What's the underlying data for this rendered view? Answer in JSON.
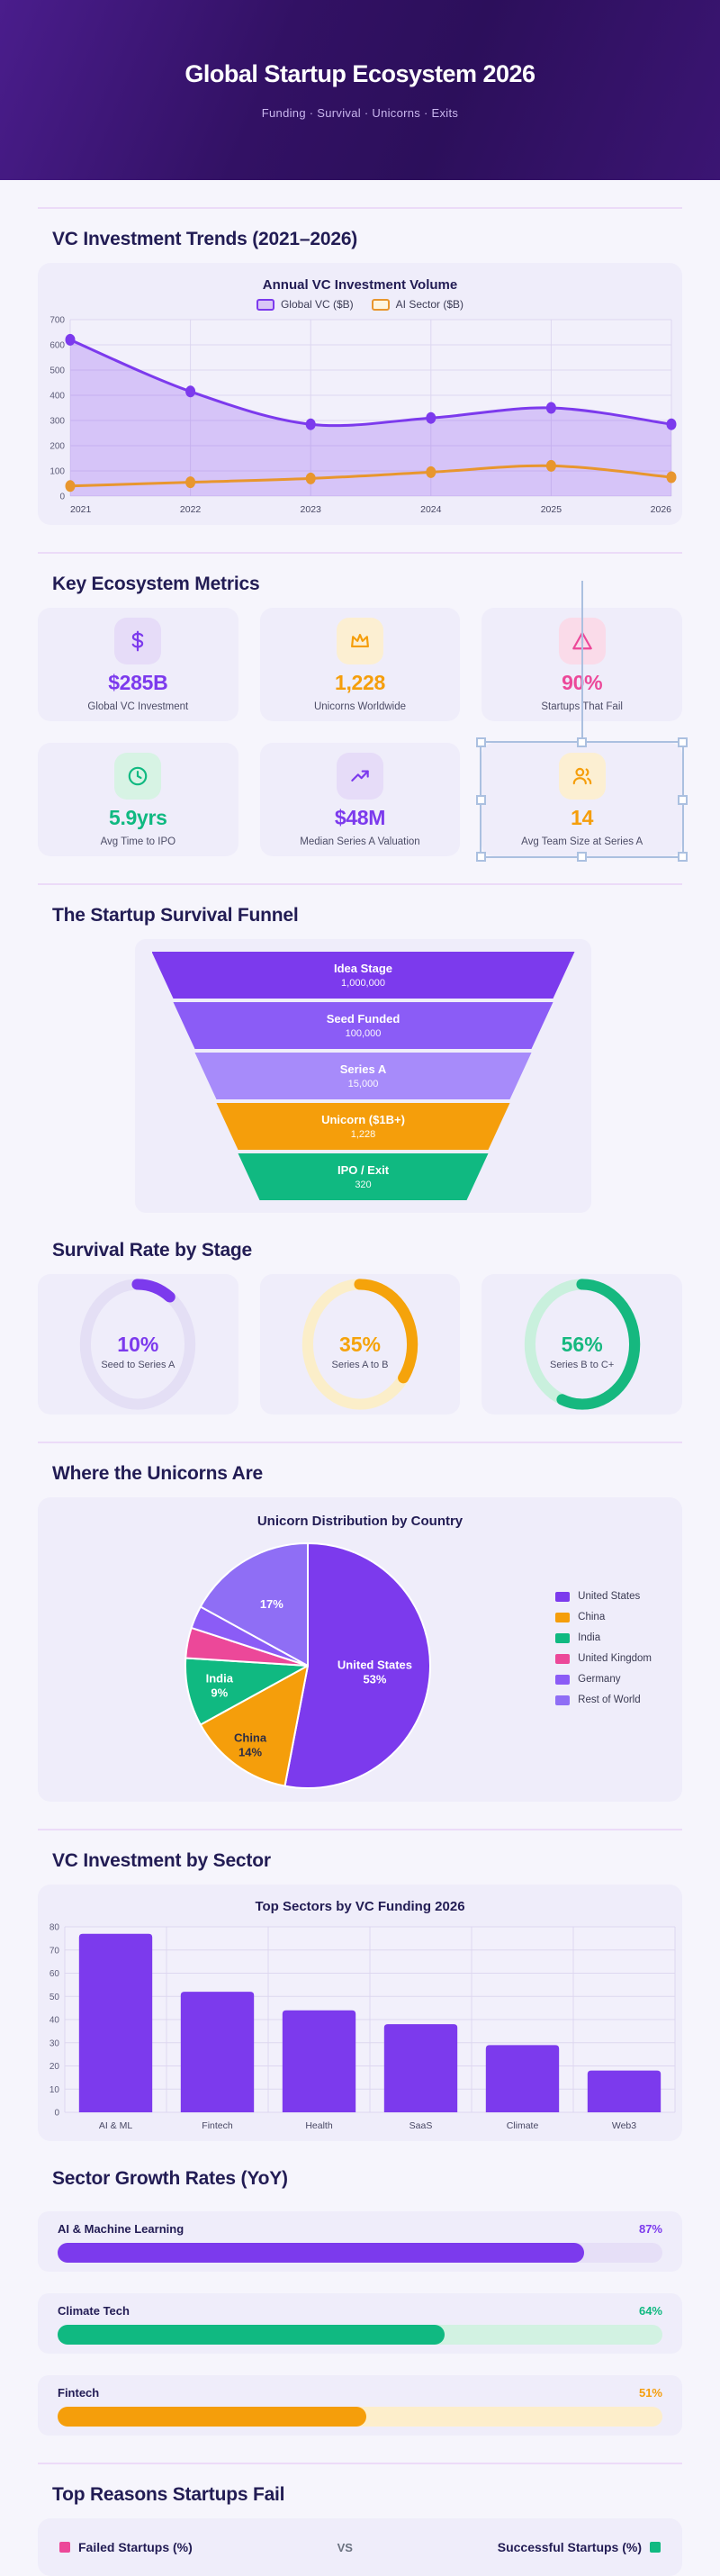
{
  "header": {
    "title": "Global Startup Ecosystem 2026",
    "subtitle": "Funding · Survival · Unicorns · Exits"
  },
  "sections": {
    "vc_trends": {
      "heading": "VC Investment Trends (2021–2026)"
    },
    "metrics": {
      "heading": "Key Ecosystem Metrics",
      "cards": [
        {
          "icon": "dollar-icon",
          "value": "$285B",
          "label": "Global VC Investment",
          "color": "#7c3aed",
          "icon_bg": "#e6dcf8",
          "selected": false
        },
        {
          "icon": "crown-icon",
          "value": "1,228",
          "label": "Unicorns Worldwide",
          "color": "#f59e0b",
          "icon_bg": "#fcefd2",
          "selected": false
        },
        {
          "icon": "warning-icon",
          "value": "90%",
          "label": "Startups That Fail",
          "color": "#ec4899",
          "icon_bg": "#fadbe9",
          "selected": false
        },
        {
          "icon": "clock-icon",
          "value": "5.9yrs",
          "label": "Avg Time to IPO",
          "color": "#10b981",
          "icon_bg": "#d7f3e4",
          "selected": false
        },
        {
          "icon": "trend-up-icon",
          "value": "$48M",
          "label": "Median Series A Valuation",
          "color": "#7c3aed",
          "icon_bg": "#e6dcf8",
          "selected": false
        },
        {
          "icon": "people-icon",
          "value": "14",
          "label": "Avg Team Size at Series A",
          "color": "#f59e0b",
          "icon_bg": "#fcefd2",
          "selected": true
        }
      ]
    },
    "funnel": {
      "heading": "The Startup Survival Funnel"
    },
    "survival": {
      "heading": "Survival Rate by Stage"
    },
    "unicorns": {
      "heading": "Where the Unicorns Are"
    },
    "sectors": {
      "heading": "VC Investment by Sector"
    },
    "growth": {
      "heading": "Sector Growth Rates (YoY)"
    },
    "fail_reasons": {
      "heading": "Top Reasons Startups Fail",
      "legend_left": "Failed Startups (%)",
      "legend_vs": "VS",
      "legend_right": "Successful Startups (%)",
      "left_color": "#ec4899",
      "right_color": "#10b981"
    }
  },
  "chart_data": [
    {
      "id": "vc_line",
      "type": "line",
      "title": "Annual VC Investment Volume",
      "x": [
        "2021",
        "2022",
        "2023",
        "2024",
        "2025",
        "2026"
      ],
      "ylim": [
        0,
        700
      ],
      "ytick": 100,
      "grid": true,
      "legend_position": "top",
      "series": [
        {
          "name": "Global VC ($B)",
          "color": "#7c3aed",
          "swatch_fill": "#d9c6f6",
          "area_fill": true,
          "values": [
            620,
            415,
            285,
            310,
            350,
            285
          ]
        },
        {
          "name": "AI Sector ($B)",
          "color": "#e8962e",
          "swatch_fill": "#fdf5e0",
          "area_fill": false,
          "values": [
            40,
            55,
            70,
            95,
            120,
            75
          ]
        }
      ]
    },
    {
      "id": "survival_funnel",
      "type": "funnel",
      "stages": [
        {
          "label": "Idea Stage",
          "value": "1,000,000",
          "color": "#7c3aed"
        },
        {
          "label": "Seed Funded",
          "value": "100,000",
          "color": "#8b5cf6"
        },
        {
          "label": "Series A",
          "value": "15,000",
          "color": "#a78bfa"
        },
        {
          "label": "Unicorn ($1B+)",
          "value": "1,228",
          "color": "#f59e0b"
        },
        {
          "label": "IPO / Exit",
          "value": "320",
          "color": "#10b981"
        }
      ]
    },
    {
      "id": "survival_rings",
      "type": "donut",
      "rings": [
        {
          "pct": 10,
          "display": "10%",
          "label": "Seed to Series A",
          "color": "#7c3aed",
          "track": "#e4dff5"
        },
        {
          "pct": 35,
          "display": "35%",
          "label": "Series A to B",
          "color": "#f5a30b",
          "track": "#fbeec9"
        },
        {
          "pct": 56,
          "display": "56%",
          "label": "Series B to C+",
          "color": "#16b87f",
          "track": "#c9f0dd"
        }
      ]
    },
    {
      "id": "unicorn_pie",
      "type": "pie",
      "title": "Unicorn Distribution by Country",
      "legend_position": "right",
      "slices": [
        {
          "label": "United States",
          "pct": 53,
          "color": "#7c3aed",
          "slice_label": "United States\n53%",
          "label_style": "light",
          "label_r": 0.55
        },
        {
          "label": "China",
          "pct": 14,
          "color": "#f59e0b",
          "slice_label": "China\n14%",
          "label_style": "dark",
          "label_r": 0.8
        },
        {
          "label": "India",
          "pct": 9,
          "color": "#10b981",
          "slice_label": "India\n9%",
          "label_style": "light",
          "label_r": 0.74
        },
        {
          "label": "United Kingdom",
          "pct": 4,
          "color": "#ec4899"
        },
        {
          "label": "Germany",
          "pct": 3,
          "color": "#8b5cf6"
        },
        {
          "label": "Rest of World",
          "pct": 17,
          "color": "#8f6ef5",
          "slice_label": "17%",
          "label_style": "light",
          "label_r": 0.58
        }
      ]
    },
    {
      "id": "sector_bars",
      "type": "bar",
      "title": "Top Sectors by VC Funding 2026",
      "categories": [
        "AI & ML",
        "Fintech",
        "Health",
        "SaaS",
        "Climate",
        "Web3"
      ],
      "values": [
        77,
        52,
        44,
        38,
        29,
        18
      ],
      "color": "#7c3aed",
      "ylim": [
        0,
        80
      ],
      "ytick": 10,
      "grid": true
    },
    {
      "id": "growth_bars",
      "type": "progress",
      "items": [
        {
          "label": "AI & Machine Learning",
          "pct": 87,
          "display": "87%",
          "color": "#7c3aed",
          "track": "#e6dff7"
        },
        {
          "label": "Climate Tech",
          "pct": 64,
          "display": "64%",
          "color": "#10b981",
          "track": "#d2f2e2"
        },
        {
          "label": "Fintech",
          "pct": 51,
          "display": "51%",
          "color": "#f59e0b",
          "track": "#fdeecb"
        }
      ]
    },
    {
      "id": "fail_compare",
      "type": "bar",
      "legend": [
        "Failed Startups (%)",
        "Successful Startups (%)"
      ],
      "legend_colors": [
        "#ec4899",
        "#10b981"
      ],
      "note_visible_portion": "legend only (chart below fold)"
    }
  ]
}
